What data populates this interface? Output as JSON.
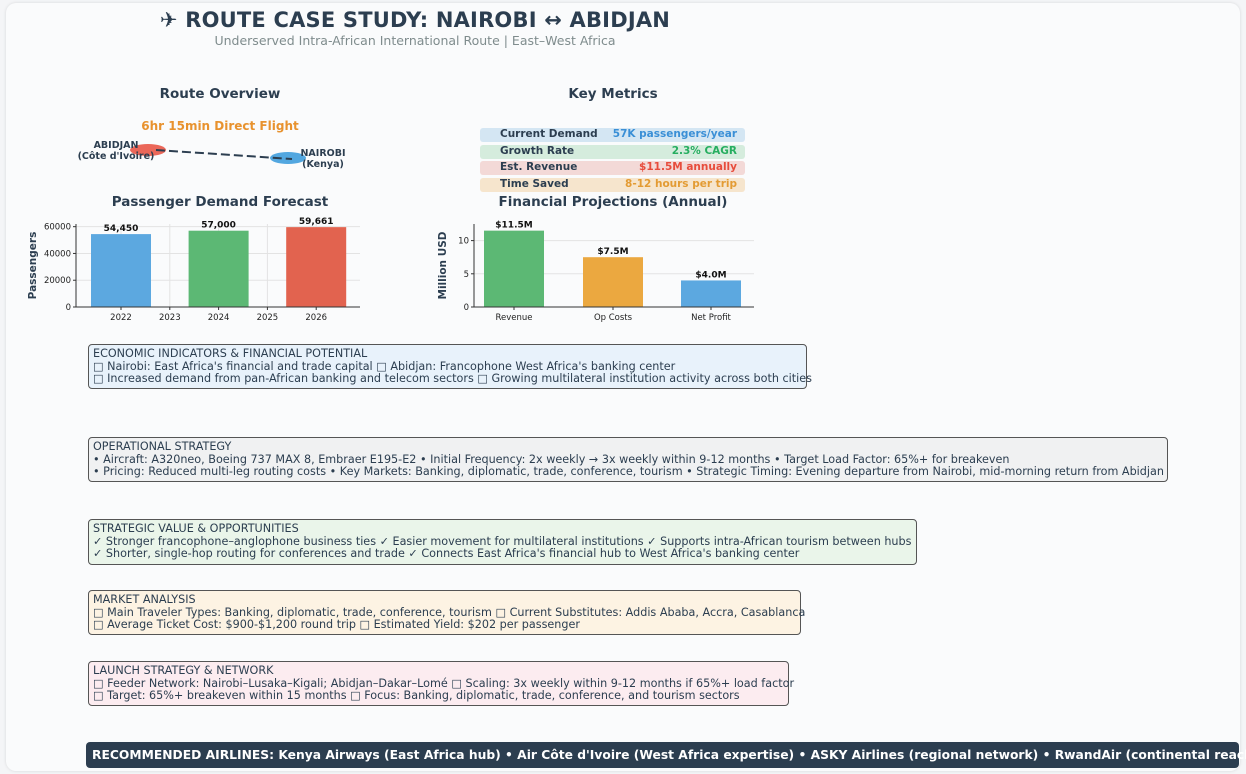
{
  "header": {
    "title": "✈ ROUTE CASE STUDY: NAIROBI ↔ ABIDJAN",
    "subtitle": "Underserved Intra-African International Route | East–West Africa"
  },
  "route_overview": {
    "title": "Route Overview",
    "flight_label": "6hr 15min Direct Flight",
    "origin_name": "ABIDJAN",
    "origin_country": "(Côte d'Ivoire)",
    "destination_name": "NAIROBI",
    "destination_country": "(Kenya)",
    "origin_color": "#e74c3c",
    "destination_color": "#3498db"
  },
  "key_metrics": {
    "title": "Key Metrics",
    "items": [
      {
        "label": "Current Demand",
        "value": "57K passengers/year",
        "bg": "#d4e6f3",
        "color": "#3a8fd6"
      },
      {
        "label": "Growth Rate",
        "value": "2.3% CAGR",
        "bg": "#d5ecdd",
        "color": "#27ae60"
      },
      {
        "label": "Est. Revenue",
        "value": "$11.5M annually",
        "bg": "#f3d9d7",
        "color": "#e74c3c"
      },
      {
        "label": "Time Saved",
        "value": "8-12 hours per trip",
        "bg": "#f6e5cd",
        "color": "#e39b33"
      }
    ]
  },
  "chart_data": [
    {
      "type": "bar",
      "title": "Passenger Demand Forecast",
      "ylabel": "Passengers",
      "xlabel": "",
      "x": [
        2022,
        2024,
        2026
      ],
      "values": [
        54450,
        57000,
        59661
      ],
      "data_labels": [
        "54,450",
        "57,000",
        "59,661"
      ],
      "colors": [
        "#5ca8e0",
        "#5cb874",
        "#e2634f"
      ],
      "x_ticks": [
        "2022",
        "2023",
        "2024",
        "2025",
        "2026"
      ],
      "y_ticks": [
        "0",
        "20000",
        "40000",
        "60000"
      ],
      "ylim": [
        0,
        62000
      ],
      "grid": true
    },
    {
      "type": "bar",
      "title": "Financial Projections (Annual)",
      "ylabel": "Million USD",
      "xlabel": "",
      "categories": [
        "Revenue",
        "Op Costs",
        "Net Profit"
      ],
      "values": [
        11.5,
        7.5,
        4.0
      ],
      "data_labels": [
        "$11.5M",
        "$7.5M",
        "$4.0M"
      ],
      "colors": [
        "#5cb874",
        "#eba840",
        "#5ca8e0"
      ],
      "y_ticks": [
        "0",
        "5",
        "10"
      ],
      "ylim": [
        0,
        12.5
      ],
      "grid": true
    }
  ],
  "sections": [
    {
      "title": "ECONOMIC INDICATORS & FINANCIAL POTENTIAL",
      "lines": [
        "□ Nairobi: East Africa's financial and trade capital  □ Abidjan: Francophone West Africa's banking center",
        "□ Increased demand from pan-African banking and telecom sectors  □ Growing multilateral institution activity across both cities"
      ],
      "bg": "#e8f2fb"
    },
    {
      "title": "OPERATIONAL STRATEGY",
      "lines": [
        "• Aircraft: A320neo, Boeing 737 MAX 8, Embraer E195-E2  • Initial Frequency: 2x weekly → 3x weekly within 9-12 months  • Target Load Factor: 65%+ for breakeven",
        "• Pricing: Reduced multi-leg routing costs  • Key Markets: Banking, diplomatic, trade, conference, tourism  • Strategic Timing: Evening departure from Nairobi, mid-morning return from Abidjan"
      ],
      "bg": "#f0f1f2"
    },
    {
      "title": "STRATEGIC VALUE & OPPORTUNITIES",
      "lines": [
        "✓ Stronger francophone–anglophone business ties  ✓ Easier movement for multilateral institutions  ✓ Supports intra-African tourism between hubs",
        "✓ Shorter, single-hop routing for conferences and trade  ✓ Connects East Africa's financial hub to West Africa's banking center"
      ],
      "bg": "#eaf5ea"
    },
    {
      "title": "MARKET ANALYSIS",
      "lines": [
        "□ Main Traveler Types: Banking, diplomatic, trade, conference, tourism  □ Current Substitutes: Addis Ababa, Accra, Casablanca",
        "□ Average Ticket Cost: $900-$1,200 round trip  □ Estimated Yield: $202 per passenger"
      ],
      "bg": "#fdf3e3"
    },
    {
      "title": "LAUNCH STRATEGY & NETWORK",
      "lines": [
        "□ Feeder Network: Nairobi–Lusaka–Kigali; Abidjan–Dakar–Lomé  □ Scaling: 3x weekly within 9-12 months if 65%+ load factor",
        "□ Target: 65%+ breakeven within 15 months  □ Focus: Banking, diplomatic, trade, conference, and tourism sectors"
      ],
      "bg": "#fcecf0"
    }
  ],
  "banner": {
    "text": "RECOMMENDED AIRLINES: Kenya Airways (East Africa hub) • Air Côte d'Ivoire (West Africa expertise) • ASKY Airlines (regional network) • RwandAir (continental reach)"
  }
}
